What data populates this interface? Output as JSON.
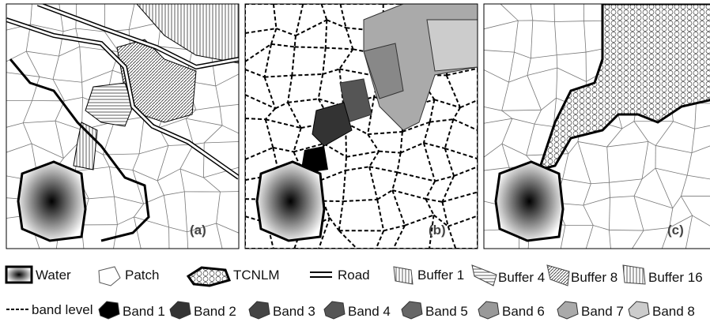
{
  "panels": [
    {
      "label": "(a)"
    },
    {
      "label": "(b)"
    },
    {
      "label": "(c)"
    }
  ],
  "legend": {
    "row1": [
      {
        "label": "Water"
      },
      {
        "label": "Patch"
      },
      {
        "label": "TCNLM"
      },
      {
        "label": "Road"
      },
      {
        "label": "Buffer 1"
      },
      {
        "label": "Buffer 4"
      },
      {
        "label": "Buffer 8"
      },
      {
        "label": "Buffer 16"
      }
    ],
    "row2": [
      {
        "label": "band level"
      },
      {
        "label": "Band 1"
      },
      {
        "label": "Band 2"
      },
      {
        "label": "Band 3"
      },
      {
        "label": "Band 4"
      },
      {
        "label": "Band 5"
      },
      {
        "label": "Band 6"
      },
      {
        "label": "Band 7"
      },
      {
        "label": "Band 8"
      }
    ]
  }
}
